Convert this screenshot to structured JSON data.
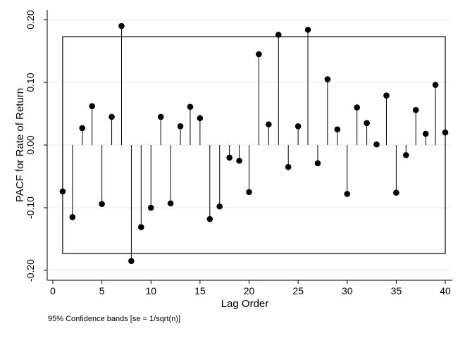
{
  "chart_data": {
    "type": "scatter",
    "style": "spike-plot",
    "xlabel": "Lag Order",
    "ylabel": "PACF for Rate of Return",
    "note": "95% Confidence bands [se = 1/sqrt(n)]",
    "xlim": [
      0,
      40
    ],
    "ylim": [
      -0.2,
      0.2
    ],
    "xticks": [
      0,
      5,
      10,
      15,
      20,
      25,
      30,
      35,
      40
    ],
    "yticks": [
      -0.2,
      -0.1,
      0,
      0.1,
      0.2
    ],
    "ytick_labels": [
      "-0.20",
      "-0.10",
      "0.00",
      "0.10",
      "0.20"
    ],
    "grid": true,
    "confidence_band": {
      "upper": 0.173,
      "lower": -0.173,
      "from_lag": 1,
      "to_lag": 40
    },
    "x": [
      1,
      2,
      3,
      4,
      5,
      6,
      7,
      8,
      9,
      10,
      11,
      12,
      13,
      14,
      15,
      16,
      17,
      18,
      19,
      20,
      21,
      22,
      23,
      24,
      25,
      26,
      27,
      28,
      29,
      30,
      31,
      32,
      33,
      34,
      35,
      36,
      37,
      38,
      39,
      40
    ],
    "values": [
      -0.074,
      -0.115,
      0.027,
      0.062,
      -0.094,
      0.045,
      0.19,
      -0.185,
      -0.131,
      -0.1,
      0.045,
      -0.093,
      0.03,
      0.061,
      0.043,
      -0.118,
      -0.098,
      -0.02,
      -0.025,
      -0.075,
      0.145,
      0.033,
      0.176,
      -0.035,
      0.03,
      0.184,
      -0.029,
      0.105,
      0.025,
      -0.078,
      0.06,
      0.035,
      0.001,
      0.079,
      -0.076,
      -0.016,
      0.056,
      0.018,
      0.096,
      0.02
    ],
    "colors": {
      "marker": "#000000",
      "line": "#000000",
      "grid": "#e8e8e8",
      "background": "#ffffff"
    }
  }
}
